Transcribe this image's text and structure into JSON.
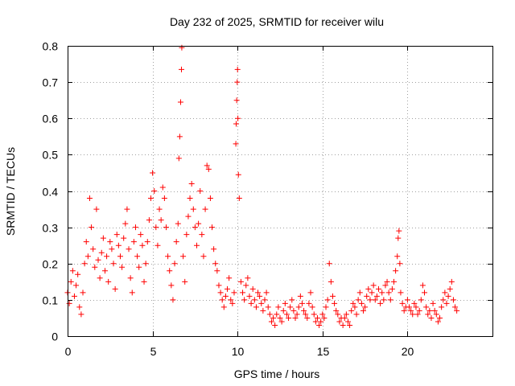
{
  "chart_data": {
    "type": "scatter",
    "title": "Day 232 of 2025, SRMTID for receiver wilu",
    "xlabel": "GPS time / hours",
    "ylabel": "SRMTID / TECUs",
    "xlim": [
      0,
      25
    ],
    "ylim": [
      0,
      0.8
    ],
    "x_ticks": [
      0,
      5,
      10,
      15,
      20
    ],
    "x_tick_labels": [
      "0",
      "5",
      "10",
      "15",
      "20"
    ],
    "y_ticks": [
      0,
      0.1,
      0.2,
      0.3,
      0.4,
      0.5,
      0.6,
      0.7,
      0.8
    ],
    "y_tick_labels": [
      "0",
      "0.1",
      "0.2",
      "0.3",
      "0.4",
      "0.5",
      "0.6",
      "0.7",
      "0.8"
    ],
    "grid": true,
    "marker": "+",
    "series": [
      {
        "name": "SRMTID",
        "color": "#ff0000",
        "points": [
          [
            0.0,
            0.12
          ],
          [
            0.1,
            0.09
          ],
          [
            0.2,
            0.15
          ],
          [
            0.3,
            0.18
          ],
          [
            0.4,
            0.11
          ],
          [
            0.5,
            0.14
          ],
          [
            0.6,
            0.17
          ],
          [
            0.7,
            0.08
          ],
          [
            0.8,
            0.06
          ],
          [
            0.9,
            0.12
          ],
          [
            1.0,
            0.2
          ],
          [
            1.1,
            0.26
          ],
          [
            1.2,
            0.22
          ],
          [
            1.3,
            0.38
          ],
          [
            1.4,
            0.3
          ],
          [
            1.5,
            0.24
          ],
          [
            1.6,
            0.19
          ],
          [
            1.7,
            0.35
          ],
          [
            1.8,
            0.21
          ],
          [
            1.9,
            0.16
          ],
          [
            2.0,
            0.23
          ],
          [
            2.1,
            0.27
          ],
          [
            2.2,
            0.18
          ],
          [
            2.3,
            0.22
          ],
          [
            2.4,
            0.15
          ],
          [
            2.5,
            0.26
          ],
          [
            2.6,
            0.24
          ],
          [
            2.7,
            0.2
          ],
          [
            2.8,
            0.13
          ],
          [
            2.9,
            0.28
          ],
          [
            3.0,
            0.25
          ],
          [
            3.1,
            0.22
          ],
          [
            3.2,
            0.19
          ],
          [
            3.3,
            0.27
          ],
          [
            3.4,
            0.31
          ],
          [
            3.5,
            0.35
          ],
          [
            3.6,
            0.24
          ],
          [
            3.7,
            0.16
          ],
          [
            3.8,
            0.12
          ],
          [
            3.9,
            0.26
          ],
          [
            4.0,
            0.3
          ],
          [
            4.1,
            0.22
          ],
          [
            4.2,
            0.19
          ],
          [
            4.3,
            0.28
          ],
          [
            4.4,
            0.25
          ],
          [
            4.5,
            0.15
          ],
          [
            4.6,
            0.2
          ],
          [
            4.7,
            0.26
          ],
          [
            4.8,
            0.32
          ],
          [
            4.9,
            0.38
          ],
          [
            5.0,
            0.45
          ],
          [
            5.1,
            0.4
          ],
          [
            5.2,
            0.3
          ],
          [
            5.3,
            0.25
          ],
          [
            5.4,
            0.35
          ],
          [
            5.5,
            0.32
          ],
          [
            5.6,
            0.41
          ],
          [
            5.7,
            0.38
          ],
          [
            5.8,
            0.3
          ],
          [
            5.9,
            0.22
          ],
          [
            6.0,
            0.18
          ],
          [
            6.1,
            0.14
          ],
          [
            6.2,
            0.1
          ],
          [
            6.3,
            0.2
          ],
          [
            6.4,
            0.26
          ],
          [
            6.5,
            0.31
          ],
          [
            6.55,
            0.49
          ],
          [
            6.6,
            0.55
          ],
          [
            6.65,
            0.645
          ],
          [
            6.7,
            0.735
          ],
          [
            6.72,
            0.795
          ],
          [
            6.8,
            0.22
          ],
          [
            6.9,
            0.15
          ],
          [
            7.0,
            0.28
          ],
          [
            7.1,
            0.33
          ],
          [
            7.2,
            0.38
          ],
          [
            7.3,
            0.42
          ],
          [
            7.4,
            0.35
          ],
          [
            7.5,
            0.3
          ],
          [
            7.6,
            0.25
          ],
          [
            7.7,
            0.31
          ],
          [
            7.8,
            0.4
          ],
          [
            7.9,
            0.28
          ],
          [
            8.0,
            0.22
          ],
          [
            8.1,
            0.35
          ],
          [
            8.2,
            0.47
          ],
          [
            8.3,
            0.46
          ],
          [
            8.4,
            0.38
          ],
          [
            8.5,
            0.3
          ],
          [
            8.6,
            0.24
          ],
          [
            8.7,
            0.2
          ],
          [
            8.8,
            0.18
          ],
          [
            8.9,
            0.14
          ],
          [
            9.0,
            0.12
          ],
          [
            9.1,
            0.1
          ],
          [
            9.2,
            0.08
          ],
          [
            9.3,
            0.11
          ],
          [
            9.4,
            0.13
          ],
          [
            9.5,
            0.16
          ],
          [
            9.6,
            0.1
          ],
          [
            9.7,
            0.09
          ],
          [
            9.8,
            0.12
          ],
          [
            9.9,
            0.53
          ],
          [
            9.92,
            0.585
          ],
          [
            9.95,
            0.65
          ],
          [
            9.98,
            0.7
          ],
          [
            10.0,
            0.735
          ],
          [
            10.02,
            0.6
          ],
          [
            10.05,
            0.445
          ],
          [
            10.1,
            0.38
          ],
          [
            10.2,
            0.15
          ],
          [
            10.3,
            0.12
          ],
          [
            10.4,
            0.1
          ],
          [
            10.5,
            0.14
          ],
          [
            10.6,
            0.16
          ],
          [
            10.7,
            0.11
          ],
          [
            10.8,
            0.09
          ],
          [
            10.9,
            0.13
          ],
          [
            11.0,
            0.1
          ],
          [
            11.1,
            0.08
          ],
          [
            11.2,
            0.12
          ],
          [
            11.3,
            0.11
          ],
          [
            11.4,
            0.09
          ],
          [
            11.5,
            0.07
          ],
          [
            11.6,
            0.1
          ],
          [
            11.7,
            0.12
          ],
          [
            11.8,
            0.08
          ],
          [
            11.9,
            0.06
          ],
          [
            12.0,
            0.04
          ],
          [
            12.1,
            0.05
          ],
          [
            12.2,
            0.03
          ],
          [
            12.3,
            0.06
          ],
          [
            12.4,
            0.08
          ],
          [
            12.5,
            0.05
          ],
          [
            12.6,
            0.04
          ],
          [
            12.7,
            0.07
          ],
          [
            12.8,
            0.09
          ],
          [
            12.9,
            0.06
          ],
          [
            13.0,
            0.05
          ],
          [
            13.1,
            0.08
          ],
          [
            13.2,
            0.1
          ],
          [
            13.3,
            0.07
          ],
          [
            13.4,
            0.05
          ],
          [
            13.5,
            0.06
          ],
          [
            13.6,
            0.08
          ],
          [
            13.7,
            0.11
          ],
          [
            13.8,
            0.09
          ],
          [
            13.9,
            0.07
          ],
          [
            14.0,
            0.06
          ],
          [
            14.1,
            0.05
          ],
          [
            14.2,
            0.09
          ],
          [
            14.3,
            0.12
          ],
          [
            14.4,
            0.08
          ],
          [
            14.5,
            0.06
          ],
          [
            14.6,
            0.04
          ],
          [
            14.7,
            0.05
          ],
          [
            14.8,
            0.03
          ],
          [
            14.9,
            0.04
          ],
          [
            15.0,
            0.06
          ],
          [
            15.1,
            0.05
          ],
          [
            15.2,
            0.08
          ],
          [
            15.3,
            0.1
          ],
          [
            15.4,
            0.2
          ],
          [
            15.5,
            0.15
          ],
          [
            15.6,
            0.11
          ],
          [
            15.7,
            0.09
          ],
          [
            15.8,
            0.07
          ],
          [
            15.9,
            0.06
          ],
          [
            16.0,
            0.04
          ],
          [
            16.1,
            0.05
          ],
          [
            16.2,
            0.03
          ],
          [
            16.3,
            0.05
          ],
          [
            16.4,
            0.06
          ],
          [
            16.5,
            0.04
          ],
          [
            16.6,
            0.03
          ],
          [
            16.7,
            0.07
          ],
          [
            16.8,
            0.09
          ],
          [
            16.9,
            0.08
          ],
          [
            17.0,
            0.06
          ],
          [
            17.1,
            0.1
          ],
          [
            17.2,
            0.12
          ],
          [
            17.3,
            0.09
          ],
          [
            17.4,
            0.07
          ],
          [
            17.5,
            0.08
          ],
          [
            17.6,
            0.11
          ],
          [
            17.7,
            0.13
          ],
          [
            17.8,
            0.1
          ],
          [
            17.9,
            0.12
          ],
          [
            18.0,
            0.14
          ],
          [
            18.1,
            0.1
          ],
          [
            18.2,
            0.11
          ],
          [
            18.3,
            0.13
          ],
          [
            18.4,
            0.09
          ],
          [
            18.5,
            0.12
          ],
          [
            18.6,
            0.1
          ],
          [
            18.7,
            0.14
          ],
          [
            18.8,
            0.15
          ],
          [
            18.9,
            0.12
          ],
          [
            19.0,
            0.1
          ],
          [
            19.1,
            0.13
          ],
          [
            19.2,
            0.15
          ],
          [
            19.3,
            0.18
          ],
          [
            19.4,
            0.22
          ],
          [
            19.45,
            0.27
          ],
          [
            19.5,
            0.29
          ],
          [
            19.55,
            0.2
          ],
          [
            19.6,
            0.12
          ],
          [
            19.7,
            0.09
          ],
          [
            19.8,
            0.07
          ],
          [
            19.9,
            0.08
          ],
          [
            20.0,
            0.1
          ],
          [
            20.1,
            0.08
          ],
          [
            20.2,
            0.07
          ],
          [
            20.3,
            0.06
          ],
          [
            20.4,
            0.09
          ],
          [
            20.5,
            0.08
          ],
          [
            20.6,
            0.06
          ],
          [
            20.7,
            0.07
          ],
          [
            20.8,
            0.1
          ],
          [
            20.9,
            0.14
          ],
          [
            21.0,
            0.12
          ],
          [
            21.1,
            0.08
          ],
          [
            21.2,
            0.06
          ],
          [
            21.3,
            0.07
          ],
          [
            21.4,
            0.05
          ],
          [
            21.5,
            0.09
          ],
          [
            21.6,
            0.07
          ],
          [
            21.7,
            0.06
          ],
          [
            21.8,
            0.04
          ],
          [
            21.9,
            0.05
          ],
          [
            22.0,
            0.08
          ],
          [
            22.1,
            0.1
          ],
          [
            22.2,
            0.12
          ],
          [
            22.3,
            0.09
          ],
          [
            22.4,
            0.11
          ],
          [
            22.5,
            0.13
          ],
          [
            22.6,
            0.15
          ],
          [
            22.7,
            0.1
          ],
          [
            22.8,
            0.08
          ],
          [
            22.9,
            0.07
          ]
        ]
      }
    ]
  }
}
